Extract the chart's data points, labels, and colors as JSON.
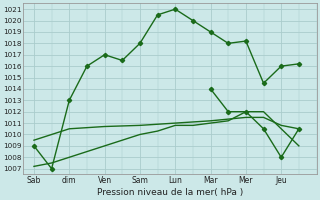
{
  "background_color": "#cce8e8",
  "grid_color": "#aacccc",
  "line_color": "#1a6b1a",
  "x_labels": [
    "Sab",
    "dim",
    "Ven",
    "Sam",
    "Lun",
    "Mar",
    "Mer",
    "Jeu"
  ],
  "x_tick_positions": [
    0,
    1,
    2,
    3,
    4,
    5,
    6,
    7
  ],
  "ylim": [
    1006.5,
    1021.5
  ],
  "yticks": [
    1007,
    1008,
    1009,
    1010,
    1011,
    1012,
    1013,
    1014,
    1015,
    1016,
    1017,
    1018,
    1019,
    1020,
    1021
  ],
  "xlabel": "Pression niveau de la mer( hPa )",
  "series1_x": [
    0,
    0.5,
    1.0,
    1.5,
    2.0,
    2.5,
    3.0,
    3.5,
    4.0,
    4.5,
    5.0,
    5.5,
    6.0,
    6.5,
    7.0,
    7.5
  ],
  "series1_y": [
    1009.0,
    1007.0,
    1013.0,
    1016.0,
    1017.0,
    1016.5,
    1018.0,
    1020.5,
    1021.0,
    1020.0,
    1019.0,
    1018.0,
    1018.2,
    1014.5,
    1016.0,
    1016.2
  ],
  "series2_x": [
    0,
    1.0,
    2.0,
    3.0,
    4.0,
    5.0,
    6.0,
    6.5,
    7.0,
    7.5
  ],
  "series2_y": [
    1009.5,
    1010.5,
    1010.7,
    1010.8,
    1011.0,
    1011.2,
    1011.5,
    1011.5,
    1010.8,
    1010.5
  ],
  "series3_x": [
    0,
    0.5,
    1.0,
    1.5,
    2.0,
    2.5,
    3.0,
    3.5,
    4.0,
    4.5,
    5.0,
    5.5,
    6.0,
    6.5,
    7.0,
    7.5
  ],
  "series3_y": [
    1007.2,
    1007.5,
    1008.0,
    1008.5,
    1009.0,
    1009.5,
    1010.0,
    1010.3,
    1010.8,
    1010.8,
    1011.0,
    1011.2,
    1012.0,
    1012.0,
    1010.5,
    1009.0
  ],
  "series4_x": [
    5.0,
    5.5,
    6.0,
    6.5,
    7.0,
    7.5
  ],
  "series4_y": [
    1014.0,
    1012.0,
    1012.0,
    1010.5,
    1008.0,
    1010.5
  ],
  "x_sep_positions": [
    0,
    1,
    2,
    3,
    4,
    5,
    6,
    7
  ],
  "figsize": [
    3.2,
    2.0
  ],
  "dpi": 100
}
